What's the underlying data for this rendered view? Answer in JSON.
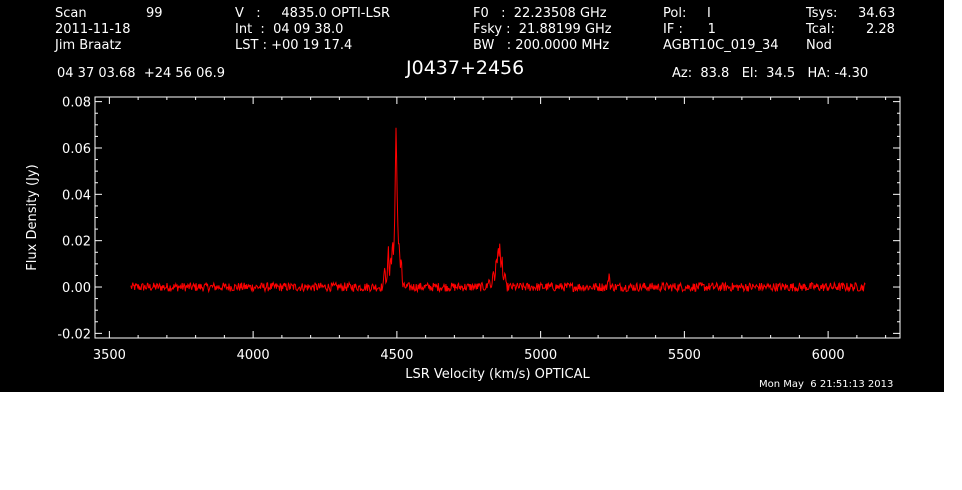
{
  "header": {
    "scan_label": "Scan",
    "scan_value": "99",
    "date": "2011-11-18",
    "observer": "Jim Braatz",
    "v_line": "V   :     4835.0 OPTI-LSR",
    "int_line": "Int  :  04 09 38.0",
    "lst_line": "LST : +00 19 17.4",
    "f0_line": "F0   :  22.23508 GHz",
    "fsky_line": "Fsky :  21.88199 GHz",
    "bw_line": "BW   : 200.0000 MHz",
    "pol_line": "Pol:     I",
    "if_line": "IF :      1",
    "project": "AGBT10C_019_34",
    "tsys_label": "Tsys:",
    "tsys_value": "34.63",
    "tcal_label": "Tcal:",
    "tcal_value": "2.28",
    "mode": "Nod",
    "coords": "04 37 03.68  +24 56 06.9",
    "source": "J0437+2456",
    "az_el_ha": "Az:  83.8   El:  34.5   HA: -4.30"
  },
  "timestamp": "Mon May  6 21:51:13 2013",
  "colors": {
    "background": "#000000",
    "spectrum": "#ff0000",
    "axes": "#ffffff"
  },
  "chart_data": {
    "type": "line",
    "xlabel": "LSR Velocity (km/s) OPTICAL",
    "ylabel": "Flux Density (Jy)",
    "xlim": [
      3450,
      6250
    ],
    "ylim": [
      -0.022,
      0.082
    ],
    "xticks": [
      3500,
      4000,
      4500,
      5000,
      5500,
      6000
    ],
    "yticks": [
      -0.02,
      0.0,
      0.02,
      0.04,
      0.06,
      0.08
    ],
    "ytick_labels": [
      "-0.02",
      "0.00",
      "0.02",
      "0.04",
      "0.06",
      "0.08"
    ],
    "grid": false,
    "x_range": [
      3575,
      6130
    ],
    "baseline": 0.0,
    "noise_rms": 0.0012,
    "features": [
      {
        "v": 4458,
        "flux": 0.01
      },
      {
        "v": 4470,
        "flux": 0.016
      },
      {
        "v": 4478,
        "flux": 0.013
      },
      {
        "v": 4485,
        "flux": 0.02
      },
      {
        "v": 4492,
        "flux": 0.024
      },
      {
        "v": 4497,
        "flux": 0.063
      },
      {
        "v": 4502,
        "flux": 0.028
      },
      {
        "v": 4508,
        "flux": 0.019
      },
      {
        "v": 4515,
        "flux": 0.012
      },
      {
        "v": 4820,
        "flux": 0.004
      },
      {
        "v": 4835,
        "flux": 0.008
      },
      {
        "v": 4845,
        "flux": 0.013
      },
      {
        "v": 4852,
        "flux": 0.016
      },
      {
        "v": 4858,
        "flux": 0.019
      },
      {
        "v": 4866,
        "flux": 0.012
      },
      {
        "v": 4875,
        "flux": 0.006
      },
      {
        "v": 5238,
        "flux": 0.006
      }
    ]
  }
}
